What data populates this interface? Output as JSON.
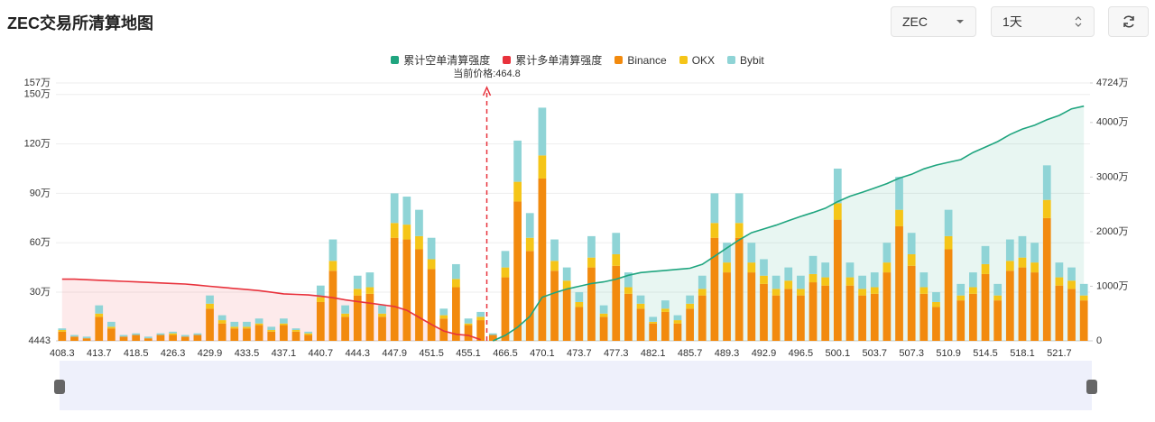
{
  "header": {
    "title": "ZEC交易所清算地图"
  },
  "controls": {
    "symbol": "ZEC",
    "period": "1天"
  },
  "chart_data": {
    "type": "bar",
    "stacked": true,
    "grid": true,
    "annotation": "当前价格:464.8",
    "categories": [
      "408.3",
      null,
      null,
      "413.7",
      null,
      null,
      "418.5",
      null,
      null,
      "426.3",
      null,
      null,
      "429.9",
      null,
      null,
      "433.5",
      null,
      null,
      "437.1",
      null,
      null,
      "440.7",
      null,
      null,
      "444.3",
      null,
      null,
      "447.9",
      null,
      null,
      "451.5",
      null,
      null,
      "455.1",
      null,
      null,
      "466.5",
      null,
      null,
      "470.1",
      null,
      null,
      "473.7",
      null,
      null,
      "477.3",
      null,
      null,
      "482.1",
      null,
      null,
      "485.7",
      null,
      null,
      "489.3",
      null,
      null,
      "492.9",
      null,
      null,
      "496.5",
      null,
      null,
      "500.1",
      null,
      null,
      "503.7",
      null,
      null,
      "507.3",
      null,
      null,
      "510.9",
      null,
      null,
      "514.5",
      null,
      null,
      "518.1",
      null,
      null,
      "521.7",
      null,
      null
    ],
    "ylim": [
      4443,
      1570000
    ],
    "yticks": [
      {
        "value": 4443,
        "label": "4443"
      },
      {
        "value": 300000,
        "label": "30万"
      },
      {
        "value": 600000,
        "label": "60万"
      },
      {
        "value": 900000,
        "label": "90万"
      },
      {
        "value": 1200000,
        "label": "120万"
      },
      {
        "value": 1500000,
        "label": "150万"
      },
      {
        "value": 1570000,
        "label": "157万"
      }
    ],
    "y2lim": [
      0,
      47240000
    ],
    "y2ticks": [
      0,
      {
        "value": 10000000,
        "label": "1000万"
      },
      {
        "value": 20000000,
        "label": "2000万"
      },
      {
        "value": 30000000,
        "label": "3000万"
      },
      {
        "value": 40000000,
        "label": "4000万"
      },
      {
        "value": 47240000,
        "label": "4724万"
      }
    ],
    "series": [
      {
        "name": "累计空单清算强度",
        "type": "line",
        "axis": "y2",
        "color": "#1fa57f",
        "fill": "rgba(31,165,127,0.10)",
        "values": [
          null,
          null,
          null,
          null,
          null,
          null,
          null,
          null,
          null,
          null,
          null,
          null,
          null,
          null,
          null,
          null,
          null,
          null,
          null,
          null,
          null,
          null,
          null,
          null,
          null,
          null,
          null,
          null,
          null,
          null,
          null,
          null,
          null,
          null,
          null,
          0,
          1000000,
          2500000,
          4500000,
          8000000,
          8800000,
          9500000,
          10000000,
          10500000,
          10800000,
          11300000,
          12000000,
          12500000,
          12700000,
          12900000,
          13100000,
          13300000,
          14000000,
          15500000,
          17000000,
          18500000,
          19800000,
          20500000,
          21200000,
          22000000,
          22800000,
          23500000,
          24300000,
          25500000,
          26500000,
          27200000,
          28000000,
          28800000,
          29800000,
          30500000,
          31500000,
          32200000,
          32700000,
          33200000,
          34500000,
          35500000,
          36500000,
          37800000,
          38800000,
          39500000,
          40500000,
          41300000,
          42500000,
          43000000
        ]
      },
      {
        "name": "累计多单清算强度",
        "type": "line",
        "axis": "y2",
        "color": "#e8323c",
        "fill": "rgba(232,50,60,0.10)",
        "values": [
          11300000,
          11300000,
          11200000,
          11100000,
          11000000,
          10900000,
          10800000,
          10700000,
          10600000,
          10500000,
          10400000,
          10200000,
          10000000,
          9800000,
          9600000,
          9400000,
          9200000,
          8900000,
          8600000,
          8500000,
          8400000,
          8200000,
          7900000,
          7500000,
          7200000,
          6900000,
          6600000,
          6300000,
          5600000,
          4300000,
          3000000,
          1800000,
          1200000,
          1000000,
          200000,
          null,
          null,
          null,
          null,
          null,
          null,
          null,
          null,
          null,
          null,
          null,
          null,
          null,
          null,
          null,
          null,
          null,
          null,
          null,
          null,
          null,
          null,
          null,
          null,
          null,
          null,
          null,
          null,
          null,
          null,
          null,
          null,
          null,
          null,
          null,
          null,
          null,
          null,
          null,
          null,
          null,
          null,
          null,
          null,
          null,
          null,
          null,
          null,
          null
        ]
      },
      {
        "name": "Binance",
        "type": "bar",
        "color": "#f28a0e",
        "values": [
          60000,
          30000,
          20000,
          150000,
          80000,
          30000,
          40000,
          20000,
          40000,
          40000,
          30000,
          40000,
          200000,
          110000,
          80000,
          80000,
          100000,
          60000,
          100000,
          60000,
          40000,
          240000,
          430000,
          150000,
          280000,
          290000,
          150000,
          630000,
          620000,
          560000,
          440000,
          140000,
          330000,
          100000,
          130000,
          40000,
          390000,
          850000,
          550000,
          990000,
          430000,
          320000,
          210000,
          450000,
          150000,
          460000,
          290000,
          200000,
          110000,
          180000,
          110000,
          200000,
          280000,
          630000,
          420000,
          630000,
          420000,
          350000,
          280000,
          320000,
          280000,
          360000,
          340000,
          740000,
          340000,
          280000,
          290000,
          420000,
          700000,
          460000,
          290000,
          210000,
          560000,
          250000,
          290000,
          410000,
          250000,
          430000,
          450000,
          420000,
          750000,
          340000,
          320000,
          250000
        ]
      },
      {
        "name": "OKX",
        "type": "bar",
        "color": "#f5c518",
        "values": [
          10000,
          0,
          0,
          20000,
          10000,
          0,
          0,
          0,
          0,
          10000,
          0,
          0,
          30000,
          20000,
          10000,
          10000,
          10000,
          10000,
          10000,
          10000,
          10000,
          30000,
          60000,
          20000,
          40000,
          40000,
          20000,
          90000,
          90000,
          80000,
          60000,
          20000,
          50000,
          10000,
          20000,
          0,
          60000,
          120000,
          80000,
          140000,
          60000,
          50000,
          30000,
          60000,
          20000,
          70000,
          40000,
          30000,
          10000,
          20000,
          20000,
          30000,
          40000,
          90000,
          60000,
          90000,
          60000,
          50000,
          40000,
          50000,
          40000,
          50000,
          50000,
          100000,
          50000,
          40000,
          40000,
          60000,
          100000,
          70000,
          40000,
          30000,
          80000,
          30000,
          40000,
          60000,
          30000,
          60000,
          60000,
          60000,
          110000,
          50000,
          50000,
          30000
        ]
      },
      {
        "name": "Bybit",
        "type": "bar",
        "color": "#8fd4d6",
        "values": [
          10000,
          10000,
          10000,
          50000,
          30000,
          10000,
          10000,
          10000,
          10000,
          10000,
          10000,
          10000,
          50000,
          30000,
          30000,
          30000,
          30000,
          20000,
          30000,
          10000,
          10000,
          70000,
          130000,
          50000,
          80000,
          90000,
          50000,
          180000,
          170000,
          160000,
          130000,
          40000,
          90000,
          30000,
          30000,
          10000,
          100000,
          250000,
          150000,
          290000,
          130000,
          80000,
          60000,
          130000,
          50000,
          130000,
          90000,
          50000,
          30000,
          50000,
          30000,
          50000,
          80000,
          180000,
          120000,
          180000,
          120000,
          100000,
          80000,
          80000,
          80000,
          110000,
          90000,
          210000,
          90000,
          80000,
          90000,
          120000,
          200000,
          130000,
          90000,
          60000,
          160000,
          70000,
          90000,
          110000,
          70000,
          130000,
          130000,
          120000,
          210000,
          90000,
          80000,
          70000
        ]
      }
    ]
  }
}
